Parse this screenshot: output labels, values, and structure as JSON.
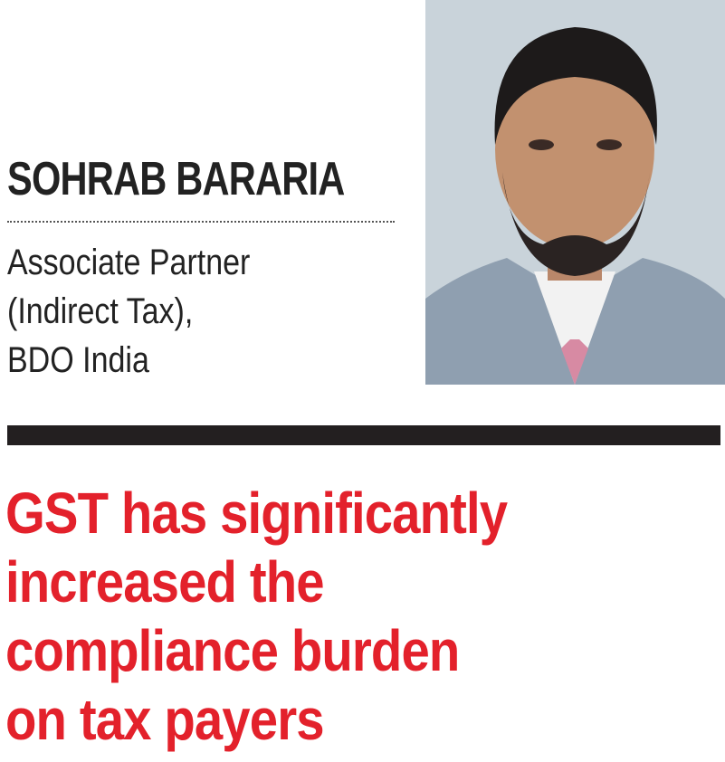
{
  "byline": {
    "name": "SOHRAB BARARIA",
    "title_lines": [
      "Associate Partner",
      "(Indirect Tax),",
      "BDO India"
    ]
  },
  "headline": {
    "lines": [
      "GST has significantly",
      "increased the",
      "compliance burden",
      "on tax payers"
    ]
  }
}
